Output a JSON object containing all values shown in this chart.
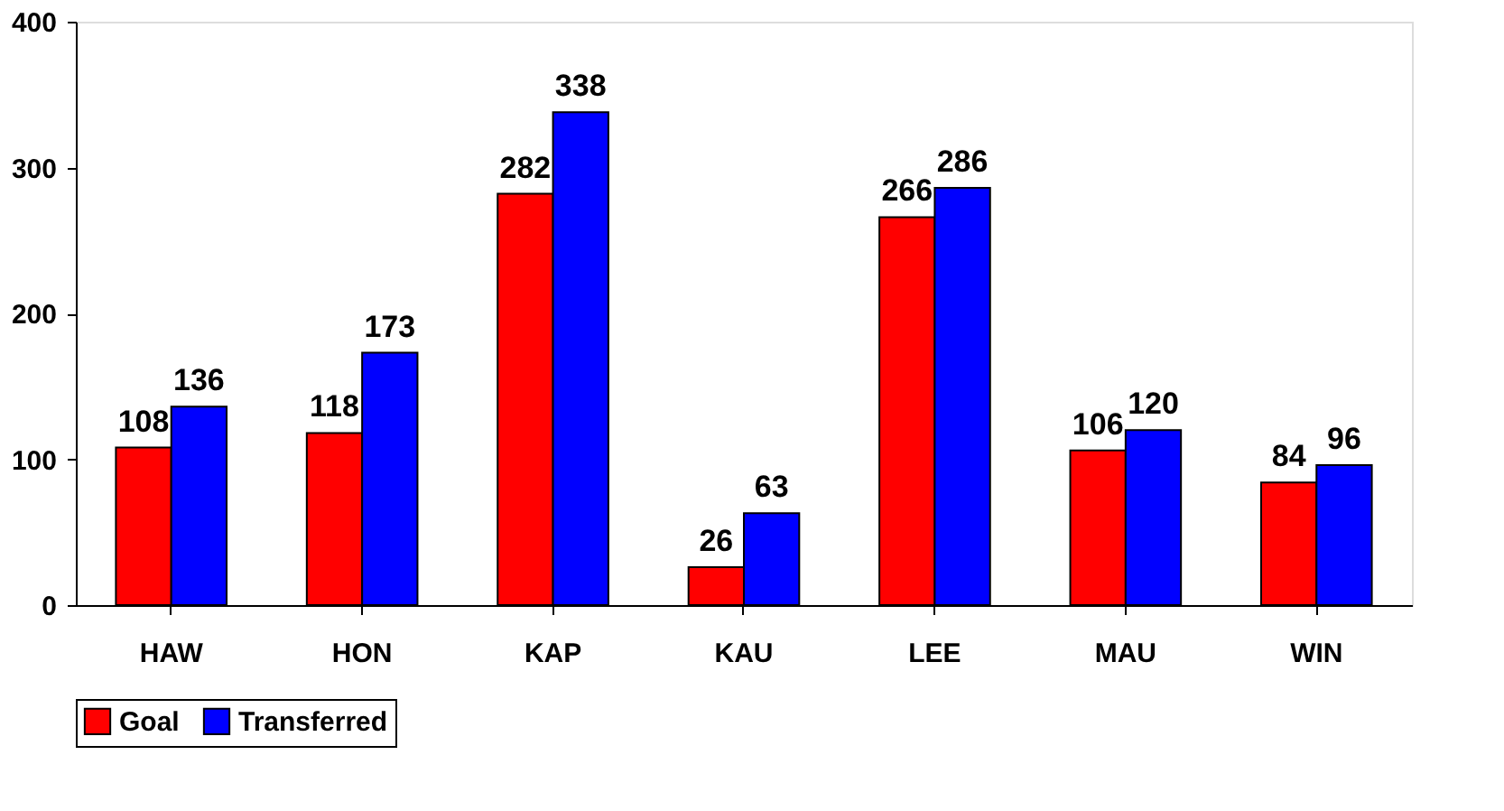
{
  "chart_data": {
    "type": "bar",
    "categories": [
      "HAW",
      "HON",
      "KAP",
      "KAU",
      "LEE",
      "MAU",
      "WIN"
    ],
    "series": [
      {
        "name": "Goal",
        "color": "#ff0000",
        "values": [
          108,
          118,
          282,
          26,
          266,
          106,
          84
        ]
      },
      {
        "name": "Transferred",
        "color": "#0000ff",
        "values": [
          136,
          173,
          338,
          63,
          286,
          120,
          96
        ]
      }
    ],
    "ylim": [
      0,
      400
    ],
    "yticks": [
      0,
      100,
      200,
      300,
      400
    ],
    "grid": false,
    "legend": "bottom",
    "data_labels": true
  }
}
